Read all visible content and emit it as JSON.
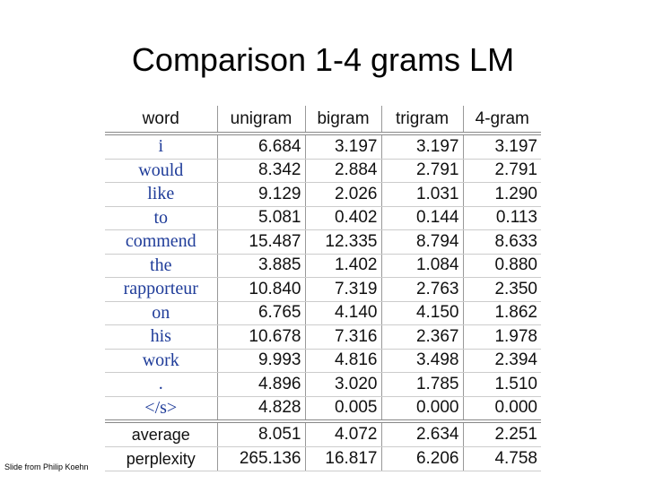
{
  "title": "Comparison 1-4 grams LM",
  "footnote": "Slide from Philip Koehn",
  "table": {
    "header": [
      "word",
      "unigram",
      "bigram",
      "trigram",
      "4-gram"
    ],
    "rows": [
      [
        "i",
        "6.684",
        "3.197",
        "3.197",
        "3.197"
      ],
      [
        "would",
        "8.342",
        "2.884",
        "2.791",
        "2.791"
      ],
      [
        "like",
        "9.129",
        "2.026",
        "1.031",
        "1.290"
      ],
      [
        "to",
        "5.081",
        "0.402",
        "0.144",
        "0.113"
      ],
      [
        "commend",
        "15.487",
        "12.335",
        "8.794",
        "8.633"
      ],
      [
        "the",
        "3.885",
        "1.402",
        "1.084",
        "0.880"
      ],
      [
        "rapporteur",
        "10.840",
        "7.319",
        "2.763",
        "2.350"
      ],
      [
        "on",
        "6.765",
        "4.140",
        "4.150",
        "1.862"
      ],
      [
        "his",
        "10.678",
        "7.316",
        "2.367",
        "1.978"
      ],
      [
        "work",
        "9.993",
        "4.816",
        "3.498",
        "2.394"
      ],
      [
        ".",
        "4.896",
        "3.020",
        "1.785",
        "1.510"
      ],
      [
        "</s>",
        "4.828",
        "0.005",
        "0.000",
        "0.000"
      ]
    ],
    "summary": [
      [
        "average",
        "8.051",
        "4.072",
        "2.634",
        "2.251"
      ],
      [
        "perplexity",
        "265.136",
        "16.817",
        "6.206",
        "4.758"
      ]
    ]
  }
}
